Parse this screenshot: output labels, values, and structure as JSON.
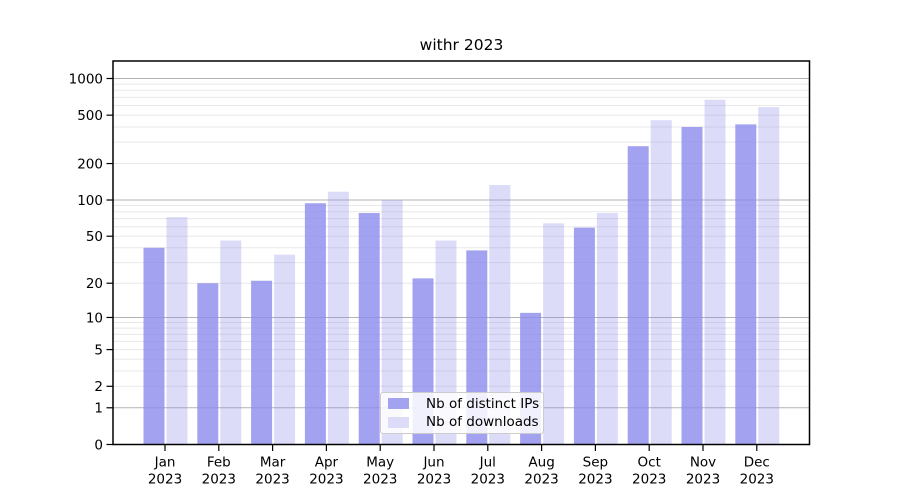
{
  "title": "withr 2023",
  "chart_data": {
    "type": "bar",
    "title": "withr 2023",
    "categories": [
      "Jan",
      "Feb",
      "Mar",
      "Apr",
      "May",
      "Jun",
      "Jul",
      "Aug",
      "Sep",
      "Oct",
      "Nov",
      "Dec"
    ],
    "x_tick_year": "2023",
    "series": [
      {
        "name": "Nb of distinct IPs",
        "color": "#8b8bec",
        "opacity": 0.8,
        "values": [
          40,
          20,
          21,
          94,
          78,
          22,
          38,
          11,
          59,
          278,
          400,
          420
        ]
      },
      {
        "name": "Nb of downloads",
        "color": "#8b8bec",
        "opacity": 0.3,
        "values": [
          72,
          46,
          35,
          117,
          100,
          46,
          133,
          64,
          78,
          455,
          670,
          582
        ]
      }
    ],
    "y_ticks": [
      0,
      1,
      2,
      5,
      10,
      20,
      50,
      100,
      200,
      500,
      1000
    ],
    "scale": "log1p",
    "ylim": [
      0,
      1250
    ],
    "grid": {
      "major_at": [
        1,
        10,
        100,
        1000
      ],
      "major_color": "#b3b3b3",
      "minor_color": "#e8e8e8"
    },
    "axis_color": "#000000",
    "background": "#ffffff",
    "legend_position": "lower-center"
  }
}
